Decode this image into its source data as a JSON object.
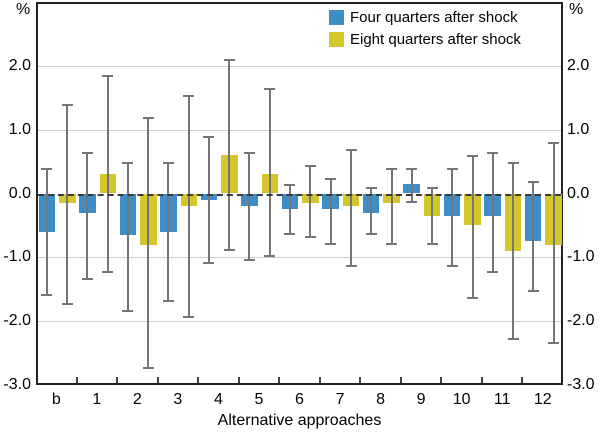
{
  "chart_data": {
    "type": "bar",
    "title": "",
    "xlabel": "Alternative approaches",
    "ylabel_left": "%",
    "ylabel_right": "%",
    "grid": true,
    "legend_position": "top-center",
    "ylim": [
      -3.0,
      3.0
    ],
    "ytick_values": [
      2,
      1,
      0,
      -1,
      -2,
      -3
    ],
    "ytick_labels": [
      "2.0",
      "1.0",
      "0.0",
      "-1.0",
      "-2.0",
      "-3.0"
    ],
    "categories": [
      "b",
      "1",
      "2",
      "3",
      "4",
      "5",
      "6",
      "7",
      "8",
      "9",
      "10",
      "11",
      "12"
    ],
    "series": [
      {
        "name": "Four quarters after shock",
        "color": "#3E8DC7",
        "values": [
          -0.6,
          -0.3,
          -0.65,
          -0.6,
          -0.1,
          -0.2,
          -0.25,
          -0.25,
          -0.3,
          0.15,
          -0.35,
          -0.35,
          -0.75
        ],
        "ci_high": [
          0.4,
          0.65,
          0.5,
          0.5,
          0.9,
          0.65,
          0.15,
          0.25,
          0.1,
          0.4,
          0.4,
          0.65,
          0.2
        ],
        "ci_low": [
          -1.6,
          -1.35,
          -1.85,
          -1.7,
          -1.1,
          -1.05,
          -0.65,
          -0.8,
          -0.65,
          -0.15,
          -1.15,
          -1.25,
          -1.55
        ]
      },
      {
        "name": "Eight quarters after shock",
        "color": "#D4C72E",
        "values": [
          -0.15,
          0.3,
          -0.8,
          -0.2,
          0.6,
          0.3,
          -0.15,
          -0.2,
          -0.15,
          -0.35,
          -0.5,
          -0.9,
          -0.8
        ],
        "ci_high": [
          1.4,
          1.85,
          1.2,
          1.55,
          2.1,
          1.65,
          0.45,
          0.7,
          0.4,
          0.1,
          0.6,
          0.5,
          0.8
        ],
        "ci_low": [
          -1.75,
          -1.25,
          -2.75,
          -1.95,
          -0.9,
          -1.0,
          -0.7,
          -1.15,
          -0.8,
          -0.8,
          -1.65,
          -2.3,
          -2.35
        ]
      }
    ],
    "errorbar_color": "#757575",
    "gridline_color": "#cbcbcb"
  }
}
